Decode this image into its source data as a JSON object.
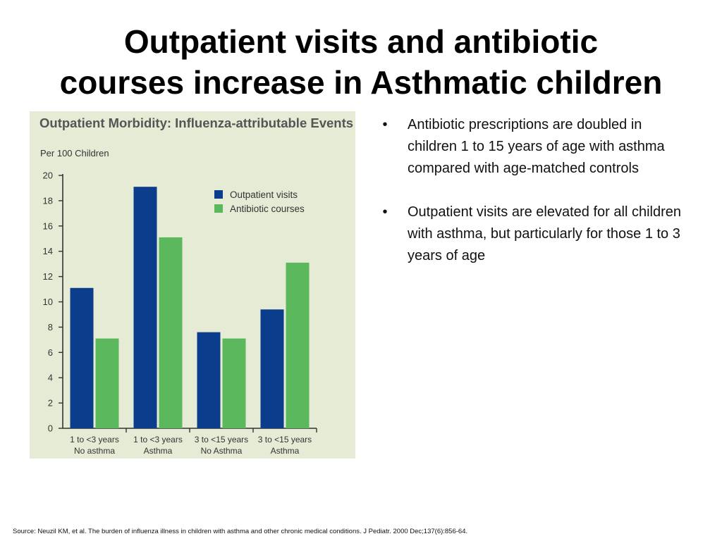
{
  "slide": {
    "title_line1": "Outpatient visits and antibiotic",
    "title_line2": "courses increase in Asthmatic children"
  },
  "bullets": [
    {
      "text": "Antibiotic prescriptions are doubled in children 1 to 15 years of age with asthma compared with age-matched controls"
    },
    {
      "text": "Outpatient visits are elevated for all children with asthma, but particularly for those 1 to 3 years of age"
    }
  ],
  "source": "Source: Neuzil KM, et al. The burden of influenza illness in children with asthma and other chronic medical conditions. J Pediatr. 2000 Dec;137(6):856-64.",
  "colors": {
    "outpatient": "#0b3d8c",
    "antibiotic": "#5cb85c",
    "panel_bg": "#e6ebd6",
    "chart_text": "#555555"
  },
  "chart_data": {
    "type": "bar",
    "title": "Outpatient Morbidity: Influenza-attributable Events",
    "ylabel": "Per 100 Children",
    "ylim": [
      0,
      20
    ],
    "yticks": [
      "0",
      "2",
      "4",
      "6",
      "8",
      "10",
      "12",
      "14",
      "16",
      "18",
      "20"
    ],
    "categories": [
      {
        "line1": "1 to <3 years",
        "line2": "No asthma"
      },
      {
        "line1": "1 to <3 years",
        "line2": "Asthma"
      },
      {
        "line1": "3 to <15 years",
        "line2": "No Asthma"
      },
      {
        "line1": "3 to <15 years",
        "line2": "Asthma"
      }
    ],
    "series": [
      {
        "name": "Outpatient visits",
        "values": [
          11.1,
          19.1,
          7.6,
          9.4
        ]
      },
      {
        "name": "Antibiotic courses",
        "values": [
          7.1,
          15.1,
          7.1,
          13.1
        ]
      }
    ],
    "legend": "top-right",
    "grid": false
  }
}
